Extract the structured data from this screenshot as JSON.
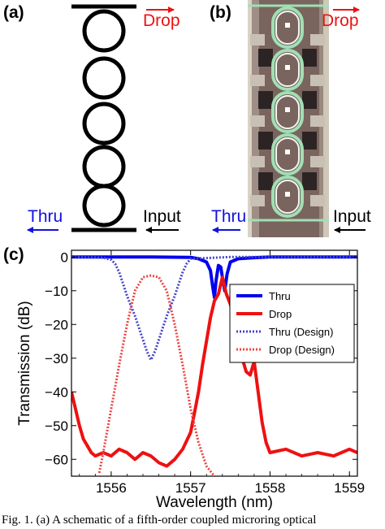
{
  "panel_a": {
    "label": "(a)",
    "drop_label": "Drop",
    "thru_label": "Thru",
    "input_label": "Input",
    "ring_count": 5
  },
  "panel_b": {
    "label": "(b)",
    "drop_label": "Drop",
    "thru_label": "Thru",
    "input_label": "Input"
  },
  "panel_c": {
    "label": "(c)"
  },
  "colors": {
    "drop": "#ee1111",
    "thru": "#1111dd",
    "input_arrow": "#000000"
  },
  "caption": "Fig. 1. (a) A schematic of a fifth-order coupled microring optical",
  "chart_data": {
    "type": "line",
    "xlabel": "Wavelength (nm)",
    "ylabel": "Transmission (dB)",
    "xlim": [
      1555.5,
      1559.1
    ],
    "ylim": [
      -65,
      2
    ],
    "xticks": [
      1556,
      1557,
      1558,
      1559
    ],
    "yticks": [
      0,
      -10,
      -20,
      -30,
      -40,
      -50,
      -60
    ],
    "grid": false,
    "legend_position": "upper-right",
    "series": [
      {
        "name": "Thru",
        "style": "solid",
        "color": "#0000ee",
        "x": [
          1555.5,
          1556.0,
          1556.5,
          1557.0,
          1557.1,
          1557.2,
          1557.25,
          1557.28,
          1557.3,
          1557.32,
          1557.35,
          1557.38,
          1557.4,
          1557.43,
          1557.46,
          1557.5,
          1557.6,
          1557.8,
          1558.0,
          1558.5,
          1559.1
        ],
        "y": [
          0,
          0,
          0,
          -0.1,
          -0.5,
          -1.5,
          -4,
          -9,
          -12,
          -7,
          -2.5,
          -3,
          -6,
          -10,
          -5,
          -1.5,
          -0.5,
          -0.2,
          0,
          0,
          0
        ]
      },
      {
        "name": "Drop",
        "style": "solid",
        "color": "#ee1111",
        "x": [
          1555.5,
          1555.55,
          1555.6,
          1555.65,
          1555.7,
          1555.75,
          1555.8,
          1555.9,
          1556.0,
          1556.1,
          1556.2,
          1556.3,
          1556.4,
          1556.5,
          1556.6,
          1556.7,
          1556.8,
          1556.9,
          1557.0,
          1557.05,
          1557.1,
          1557.15,
          1557.2,
          1557.25,
          1557.3,
          1557.35,
          1557.4,
          1557.45,
          1557.5,
          1557.55,
          1557.6,
          1557.65,
          1557.7,
          1557.75,
          1557.8,
          1557.85,
          1557.9,
          1557.95,
          1558.0,
          1558.2,
          1558.4,
          1558.6,
          1558.8,
          1559.0,
          1559.1
        ],
        "y": [
          -40,
          -45,
          -50,
          -54,
          -56,
          -58,
          -59,
          -58,
          -59,
          -57,
          -58,
          -60,
          -58,
          -59,
          -61,
          -62,
          -60,
          -57,
          -52,
          -46,
          -40,
          -32,
          -25,
          -18,
          -13,
          -11,
          -6,
          -11,
          -14,
          -18,
          -24,
          -30,
          -34,
          -35,
          -31,
          -40,
          -49,
          -55,
          -58,
          -57,
          -59,
          -58,
          -59,
          -57,
          -58
        ]
      },
      {
        "name": "Thru (Design)",
        "style": "dotted",
        "color": "#4444cc",
        "x": [
          1555.5,
          1555.9,
          1556.0,
          1556.05,
          1556.1,
          1556.15,
          1556.2,
          1556.25,
          1556.3,
          1556.35,
          1556.4,
          1556.45,
          1556.5,
          1556.55,
          1556.6,
          1556.65,
          1556.7,
          1556.75,
          1556.8,
          1556.85,
          1556.9,
          1556.95,
          1557.0,
          1557.5,
          1559.1
        ],
        "y": [
          0,
          -0.2,
          -0.8,
          -2,
          -4.5,
          -8,
          -11.5,
          -14.5,
          -17.5,
          -21,
          -24.5,
          -28,
          -30.5,
          -28,
          -24.5,
          -21,
          -17.5,
          -14.5,
          -11.5,
          -8,
          -4.5,
          -2,
          -0.5,
          0,
          0
        ]
      },
      {
        "name": "Drop (Design)",
        "style": "dotted",
        "color": "#ee4444",
        "x": [
          1555.85,
          1555.9,
          1556.0,
          1556.1,
          1556.2,
          1556.3,
          1556.4,
          1556.5,
          1556.6,
          1556.7,
          1556.8,
          1556.9,
          1557.0,
          1557.1,
          1557.2,
          1557.3
        ],
        "y": [
          -64,
          -58,
          -45,
          -32,
          -20,
          -10,
          -6,
          -5.5,
          -6,
          -10,
          -20,
          -32,
          -45,
          -55,
          -62,
          -65
        ]
      }
    ]
  }
}
